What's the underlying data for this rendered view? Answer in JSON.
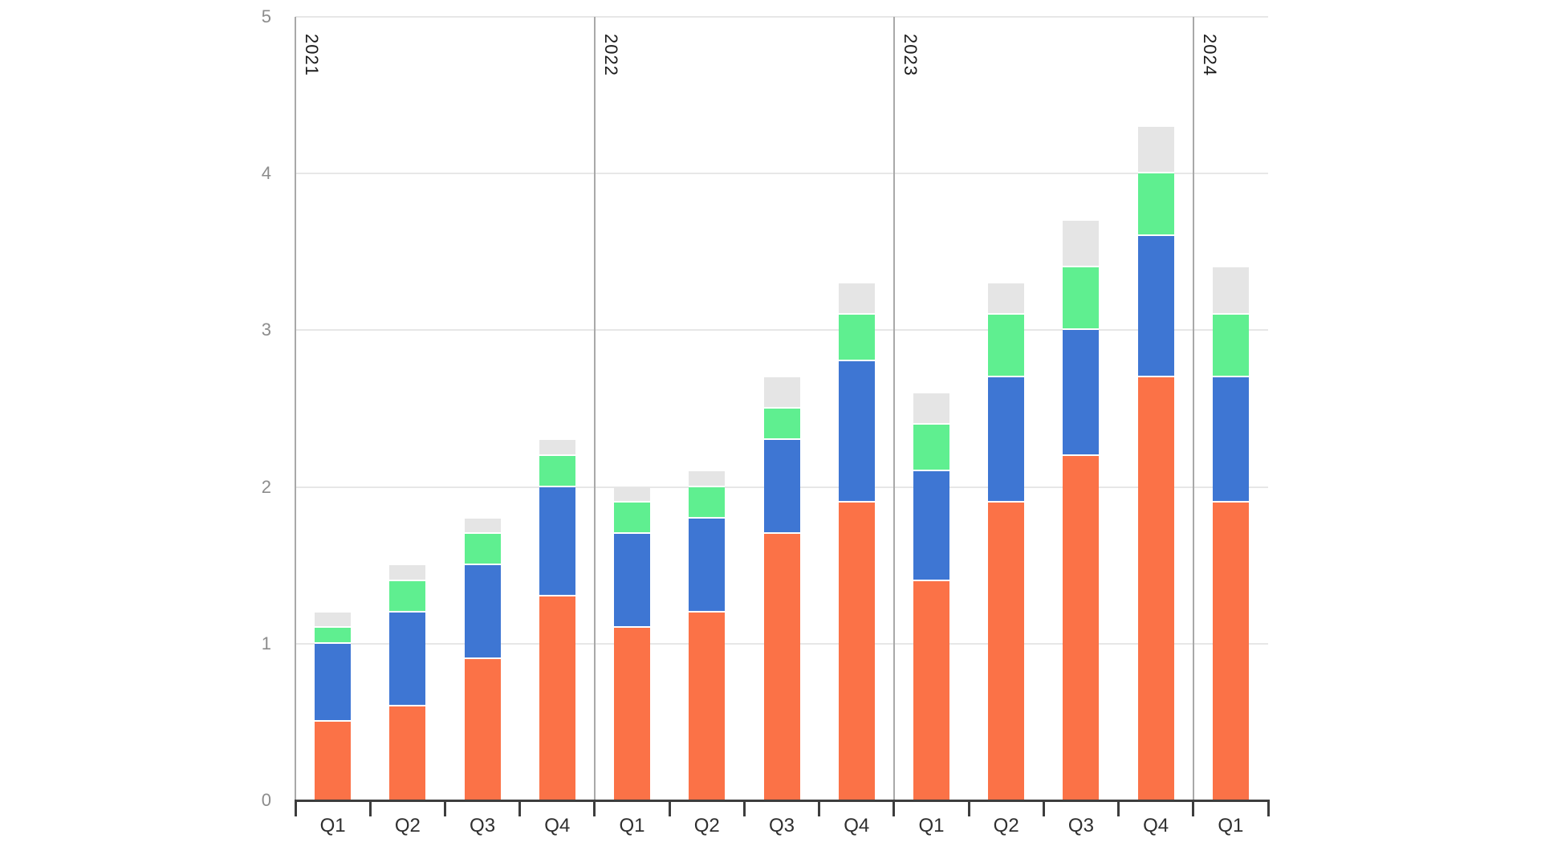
{
  "chart_data": {
    "type": "bar",
    "stacked": true,
    "title": "",
    "categories": [
      "Q1",
      "Q2",
      "Q3",
      "Q4",
      "Q1",
      "Q2",
      "Q3",
      "Q4",
      "Q1",
      "Q2",
      "Q3",
      "Q4",
      "Q1"
    ],
    "year_groups": [
      {
        "label": "2021",
        "span": 4
      },
      {
        "label": "2022",
        "span": 4
      },
      {
        "label": "2023",
        "span": 4
      },
      {
        "label": "2024",
        "span": 1
      }
    ],
    "series": [
      {
        "name": "orange",
        "color": "#fb7247",
        "values": [
          0.5,
          0.6,
          0.9,
          1.3,
          1.1,
          1.2,
          1.7,
          1.9,
          1.4,
          1.9,
          2.2,
          2.7,
          1.9
        ]
      },
      {
        "name": "blue",
        "color": "#3e76d3",
        "values": [
          0.5,
          0.6,
          0.6,
          0.7,
          0.6,
          0.6,
          0.6,
          0.9,
          0.7,
          0.8,
          0.8,
          0.9,
          0.8
        ]
      },
      {
        "name": "green",
        "color": "#5fef90",
        "values": [
          0.1,
          0.2,
          0.2,
          0.2,
          0.2,
          0.2,
          0.2,
          0.3,
          0.3,
          0.4,
          0.4,
          0.4,
          0.4
        ]
      },
      {
        "name": "gray",
        "color": "#e5e5e5",
        "values": [
          0.1,
          0.1,
          0.1,
          0.1,
          0.1,
          0.1,
          0.2,
          0.2,
          0.2,
          0.2,
          0.3,
          0.3,
          0.3
        ]
      }
    ],
    "bar_totals": [
      1.2,
      1.5,
      1.8,
      2.3,
      2.0,
      2.1,
      2.7,
      3.3,
      2.6,
      3.3,
      3.7,
      4.3,
      3.4
    ],
    "xlabel": "",
    "ylabel": "",
    "y_axis": {
      "ticks": [
        0,
        1,
        2,
        3,
        4,
        5
      ],
      "range": [
        0,
        5
      ]
    },
    "grid": true,
    "legend": "none"
  }
}
